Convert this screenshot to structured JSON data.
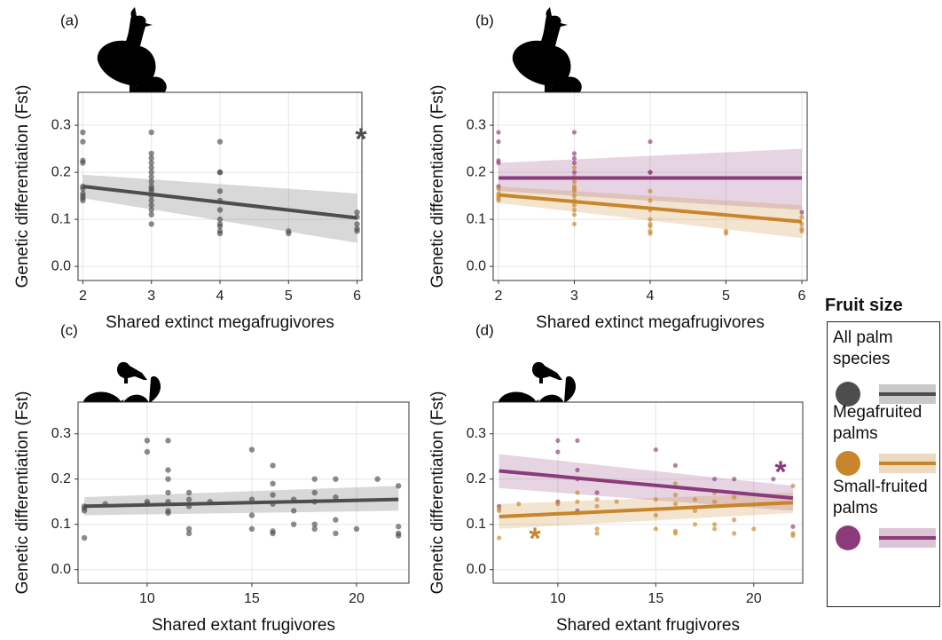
{
  "chart_data": [
    {
      "type": "scatter",
      "title": "(a)",
      "x_label": "Shared extinct megafrugivores",
      "y_label": "Genetic differentiation (Fst)",
      "xlim": [
        1.93,
        6.07
      ],
      "ylim": [
        -0.03,
        0.37
      ],
      "xticks": [
        2,
        3,
        4,
        5,
        6
      ],
      "yticks": [
        {
          "value": 0,
          "label": "0.0"
        },
        0.1,
        0.2,
        0.3
      ],
      "grid": true,
      "series": [
        {
          "color": "#4d4d4d",
          "x": [
            2,
            2,
            2,
            2,
            2,
            2,
            2,
            2,
            2,
            2,
            3,
            3,
            3,
            3,
            3,
            3,
            3,
            3,
            3,
            3,
            3,
            3,
            3,
            3,
            3,
            3,
            3,
            4,
            4,
            4,
            4,
            4,
            4,
            4,
            4,
            4,
            4,
            4,
            5,
            5,
            6,
            6,
            6,
            6,
            6
          ],
          "values": [
            0.285,
            0.265,
            0.225,
            0.22,
            0.17,
            0.165,
            0.155,
            0.15,
            0.145,
            0.14,
            0.285,
            0.24,
            0.23,
            0.22,
            0.21,
            0.2,
            0.19,
            0.18,
            0.17,
            0.165,
            0.16,
            0.15,
            0.14,
            0.13,
            0.12,
            0.11,
            0.09,
            0.265,
            0.2,
            0.2,
            0.16,
            0.14,
            0.12,
            0.1,
            0.09,
            0.085,
            0.075,
            0.07,
            0.075,
            0.07,
            0.115,
            0.105,
            0.09,
            0.08,
            0.075
          ]
        }
      ],
      "fits": [
        {
          "color": "#4d4d4d",
          "x": [
            2,
            6
          ],
          "values": [
            0.17,
            0.103
          ],
          "lower": [
            0.145,
            0.05
          ],
          "upper": [
            0.195,
            0.155
          ]
        }
      ],
      "annotations": [
        {
          "text": "*",
          "color": "#4d4d4d"
        }
      ]
    },
    {
      "type": "scatter",
      "title": "(b)",
      "x_label": "Shared extinct megafrugivores",
      "y_label": "Genetic differentiation (Fst)",
      "xlim": [
        1.93,
        6.07
      ],
      "ylim": [
        -0.03,
        0.37
      ],
      "xticks": [
        2,
        3,
        4,
        5,
        6
      ],
      "yticks": [
        {
          "value": 0,
          "label": "0.0"
        },
        0.1,
        0.2,
        0.3
      ],
      "grid": true,
      "series": [
        {
          "color": "#8b3a7a",
          "x": [
            2,
            2,
            2,
            2,
            2,
            3,
            3,
            3,
            3,
            3,
            4,
            4,
            4,
            6
          ],
          "values": [
            0.285,
            0.265,
            0.225,
            0.22,
            0.17,
            0.285,
            0.24,
            0.23,
            0.22,
            0.2,
            0.265,
            0.2,
            0.2,
            0.115
          ]
        },
        {
          "color": "#c8852b",
          "x": [
            2,
            2,
            2,
            2,
            2,
            3,
            3,
            3,
            3,
            3,
            3,
            3,
            3,
            3,
            3,
            3,
            3,
            4,
            4,
            4,
            4,
            4,
            4,
            4,
            4,
            5,
            5,
            6,
            6,
            6,
            6
          ],
          "values": [
            0.165,
            0.155,
            0.15,
            0.145,
            0.14,
            0.21,
            0.19,
            0.18,
            0.17,
            0.165,
            0.16,
            0.15,
            0.14,
            0.13,
            0.12,
            0.11,
            0.09,
            0.16,
            0.14,
            0.12,
            0.1,
            0.09,
            0.085,
            0.075,
            0.07,
            0.075,
            0.07,
            0.105,
            0.09,
            0.08,
            0.075
          ]
        }
      ],
      "fits": [
        {
          "color": "#8b3a7a",
          "x": [
            2,
            6
          ],
          "values": [
            0.188,
            0.188
          ],
          "lower": [
            0.16,
            0.12
          ],
          "upper": [
            0.22,
            0.25
          ]
        },
        {
          "color": "#c8852b",
          "x": [
            2,
            6
          ],
          "values": [
            0.152,
            0.095
          ],
          "lower": [
            0.135,
            0.06
          ],
          "upper": [
            0.17,
            0.13
          ]
        }
      ]
    },
    {
      "type": "scatter",
      "title": "(c)",
      "x_label": "Shared extant frugivores",
      "y_label": "Genetic differentiation (Fst)",
      "xlim": [
        6.7,
        22.5
      ],
      "ylim": [
        -0.03,
        0.37
      ],
      "xticks": [
        10,
        15,
        20
      ],
      "yticks": [
        {
          "value": 0,
          "label": "0.0"
        },
        0.1,
        0.2,
        0.3
      ],
      "grid": true,
      "series": [
        {
          "color": "#4d4d4d",
          "x": [
            7,
            7,
            7,
            7,
            8,
            10,
            10,
            10,
            10,
            11,
            11,
            11,
            11,
            11,
            11,
            11,
            12,
            12,
            12,
            12,
            12,
            13,
            15,
            15,
            15,
            15,
            16,
            16,
            16,
            16,
            16,
            16,
            17,
            17,
            17,
            18,
            18,
            18,
            18,
            18,
            19,
            19,
            19,
            19,
            20,
            21,
            22,
            22,
            22,
            22
          ],
          "values": [
            0.14,
            0.135,
            0.13,
            0.07,
            0.145,
            0.285,
            0.26,
            0.15,
            0.145,
            0.285,
            0.22,
            0.2,
            0.17,
            0.15,
            0.13,
            0.125,
            0.17,
            0.155,
            0.14,
            0.09,
            0.08,
            0.15,
            0.265,
            0.155,
            0.12,
            0.09,
            0.23,
            0.19,
            0.165,
            0.145,
            0.085,
            0.08,
            0.155,
            0.13,
            0.1,
            0.2,
            0.17,
            0.15,
            0.1,
            0.09,
            0.2,
            0.16,
            0.11,
            0.08,
            0.09,
            0.2,
            0.185,
            0.095,
            0.08,
            0.075
          ]
        }
      ],
      "fits": [
        {
          "color": "#4d4d4d",
          "x": [
            7,
            22
          ],
          "values": [
            0.14,
            0.155
          ],
          "lower": [
            0.12,
            0.13
          ],
          "upper": [
            0.16,
            0.185
          ]
        }
      ]
    },
    {
      "type": "scatter",
      "title": "(d)",
      "x_label": "Shared extant frugivores",
      "y_label": "Genetic differentiation (Fst)",
      "xlim": [
        6.7,
        22.5
      ],
      "ylim": [
        -0.03,
        0.37
      ],
      "xticks": [
        10,
        15,
        20
      ],
      "yticks": [
        {
          "value": 0,
          "label": "0.0"
        },
        0.1,
        0.2,
        0.3
      ],
      "grid": true,
      "series": [
        {
          "color": "#8b3a7a",
          "x": [
            7,
            10,
            10,
            10,
            11,
            11,
            11,
            11,
            12,
            15,
            16,
            18,
            19,
            21,
            22
          ],
          "values": [
            0.14,
            0.285,
            0.26,
            0.15,
            0.285,
            0.22,
            0.2,
            0.13,
            0.17,
            0.265,
            0.23,
            0.2,
            0.2,
            0.2,
            0.095
          ]
        },
        {
          "color": "#c8852b",
          "x": [
            7,
            7,
            7,
            8,
            10,
            11,
            11,
            11,
            12,
            12,
            12,
            12,
            13,
            15,
            15,
            15,
            16,
            16,
            16,
            16,
            16,
            17,
            17,
            17,
            18,
            18,
            18,
            18,
            19,
            19,
            19,
            20,
            22,
            22,
            22
          ],
          "values": [
            0.135,
            0.13,
            0.07,
            0.145,
            0.145,
            0.17,
            0.15,
            0.125,
            0.155,
            0.14,
            0.09,
            0.08,
            0.15,
            0.155,
            0.12,
            0.09,
            0.19,
            0.165,
            0.145,
            0.085,
            0.08,
            0.155,
            0.13,
            0.1,
            0.17,
            0.15,
            0.1,
            0.09,
            0.16,
            0.11,
            0.08,
            0.09,
            0.185,
            0.08,
            0.075
          ]
        }
      ],
      "fits": [
        {
          "color": "#8b3a7a",
          "x": [
            7,
            22
          ],
          "values": [
            0.218,
            0.158
          ],
          "lower": [
            0.18,
            0.13
          ],
          "upper": [
            0.255,
            0.185
          ]
        },
        {
          "color": "#c8852b",
          "x": [
            7,
            22
          ],
          "values": [
            0.117,
            0.148
          ],
          "lower": [
            0.09,
            0.125
          ],
          "upper": [
            0.145,
            0.17
          ]
        }
      ],
      "annotations": [
        {
          "text": "*",
          "color": "#8b3a7a"
        },
        {
          "text": "*",
          "color": "#c8852b"
        }
      ]
    }
  ],
  "legend": {
    "title": "Fruit size",
    "entries": [
      {
        "label": "All palm species",
        "color": "#4d4d4d"
      },
      {
        "label": "Megafruited palms",
        "color": "#c8852b"
      },
      {
        "label": "Small-fruited palms",
        "color": "#8b3a7a"
      }
    ]
  }
}
